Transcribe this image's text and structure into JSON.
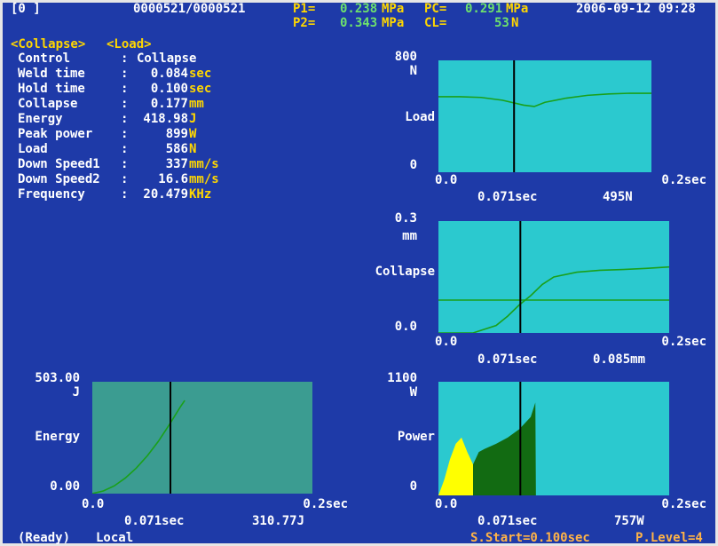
{
  "header": {
    "channel": "[0 ]",
    "counter": "0000521/0000521",
    "p1_label": "P1=",
    "p1_value": "0.238",
    "p1_unit": "MPa",
    "pc_label": "PC=",
    "pc_value": "0.291",
    "pc_unit": "MPa",
    "datetime": "2006-09-12 09:28",
    "p2_label": "P2=",
    "p2_value": "0.343",
    "p2_unit": "MPa",
    "cl_label": "CL=",
    "cl_value": "53",
    "cl_unit": "N"
  },
  "mode_tags": {
    "left": "<Collapse>",
    "right": "<Load>"
  },
  "params": [
    {
      "label": "Control",
      "sep": ":",
      "value": "Collapse",
      "unit": ""
    },
    {
      "label": "Weld time",
      "sep": ":",
      "value": "0.084",
      "unit": "sec"
    },
    {
      "label": "Hold time",
      "sep": ":",
      "value": "0.100",
      "unit": "sec"
    },
    {
      "label": "Collapse",
      "sep": ":",
      "value": "0.177",
      "unit": "mm"
    },
    {
      "label": "Energy",
      "sep": ":",
      "value": "418.98",
      "unit": "J"
    },
    {
      "label": "Peak power",
      "sep": ":",
      "value": "899",
      "unit": "W"
    },
    {
      "label": "Load",
      "sep": ":",
      "value": "586",
      "unit": "N"
    },
    {
      "label": "Down Speed1",
      "sep": ":",
      "value": "337",
      "unit": "mm/s"
    },
    {
      "label": "Down Speed2",
      "sep": ":",
      "value": "16.6",
      "unit": "mm/s"
    },
    {
      "label": "Frequency",
      "sep": ":",
      "value": "20.479",
      "unit": "KHz"
    }
  ],
  "chart_data": [
    {
      "type": "line",
      "ylabel": "Load",
      "yunit": "N",
      "ymax_label": "800",
      "ymin_label": "0",
      "xmin_label": "0.0",
      "xmax_label": "0.2sec",
      "cursor_time": "0.071sec",
      "cursor_value": "495N",
      "xlim": [
        0,
        0.2
      ],
      "ylim": [
        0,
        800
      ],
      "cursor_x": 0.071,
      "series": [
        {
          "x": [
            0,
            0.02,
            0.04,
            0.06,
            0.08,
            0.09,
            0.1,
            0.12,
            0.14,
            0.16,
            0.18,
            0.2
          ],
          "y": [
            540,
            540,
            535,
            515,
            480,
            470,
            500,
            530,
            550,
            560,
            565,
            565
          ]
        }
      ]
    },
    {
      "type": "line",
      "ylabel": "Collapse",
      "yunit": "mm",
      "ymax_label": "0.3",
      "ymin_label": "0.0",
      "xmin_label": "0.0",
      "xmax_label": "0.2sec",
      "cursor_time": "0.071sec",
      "cursor_value": "0.085mm",
      "xlim": [
        0,
        0.2
      ],
      "ylim": [
        0,
        0.3
      ],
      "cursor_x": 0.071,
      "reference_y": 0.088,
      "series": [
        {
          "x": [
            0,
            0.03,
            0.05,
            0.06,
            0.07,
            0.08,
            0.09,
            0.1,
            0.12,
            0.14,
            0.16,
            0.18,
            0.2
          ],
          "y": [
            0,
            0,
            0.02,
            0.045,
            0.075,
            0.1,
            0.13,
            0.15,
            0.163,
            0.168,
            0.17,
            0.173,
            0.177
          ]
        }
      ]
    },
    {
      "type": "line",
      "ylabel": "Energy",
      "yunit": "J",
      "ymax_label": "503.00",
      "ymin_label": "0.00",
      "xmin_label": "0.0",
      "xmax_label": "0.2sec",
      "cursor_time": "0.071sec",
      "cursor_value": "310.77J",
      "xlim": [
        0,
        0.2
      ],
      "ylim": [
        0,
        503
      ],
      "cursor_x": 0.071,
      "series": [
        {
          "x": [
            0,
            0.01,
            0.02,
            0.03,
            0.04,
            0.05,
            0.06,
            0.07,
            0.08,
            0.084
          ],
          "y": [
            0,
            12,
            35,
            70,
            115,
            170,
            235,
            310,
            390,
            419
          ]
        }
      ]
    },
    {
      "type": "area",
      "ylabel": "Power",
      "yunit": "W",
      "ymax_label": "1100",
      "ymin_label": "0",
      "xmin_label": "0.0",
      "xmax_label": "0.2sec",
      "cursor_time": "0.071sec",
      "cursor_value": "757W",
      "xlim": [
        0,
        0.2
      ],
      "ylim": [
        0,
        1100
      ],
      "cursor_x": 0.071,
      "series": [
        {
          "x": [
            0,
            0.005,
            0.01,
            0.015,
            0.02,
            0.025,
            0.03
          ],
          "y": [
            0,
            150,
            350,
            500,
            560,
            420,
            300
          ]
        },
        {
          "x": [
            0.03,
            0.035,
            0.04,
            0.05,
            0.06,
            0.07,
            0.08,
            0.084,
            0.0845
          ],
          "y": [
            300,
            420,
            450,
            500,
            560,
            640,
            760,
            899,
            0
          ]
        }
      ]
    }
  ],
  "footer": {
    "ready": "(Ready)",
    "mode": "Local",
    "start": "S.Start=0.100sec",
    "plevel": "P.Level=4"
  },
  "colors": {
    "background": "#1e3aa8",
    "plot_bg": "#2bc9cf",
    "plot_dim_bg": "#3b9c91",
    "trace": "#1aa01a",
    "cursor": "#000000",
    "power_fill": "#126b12",
    "power_highlight": "#ffff00"
  }
}
